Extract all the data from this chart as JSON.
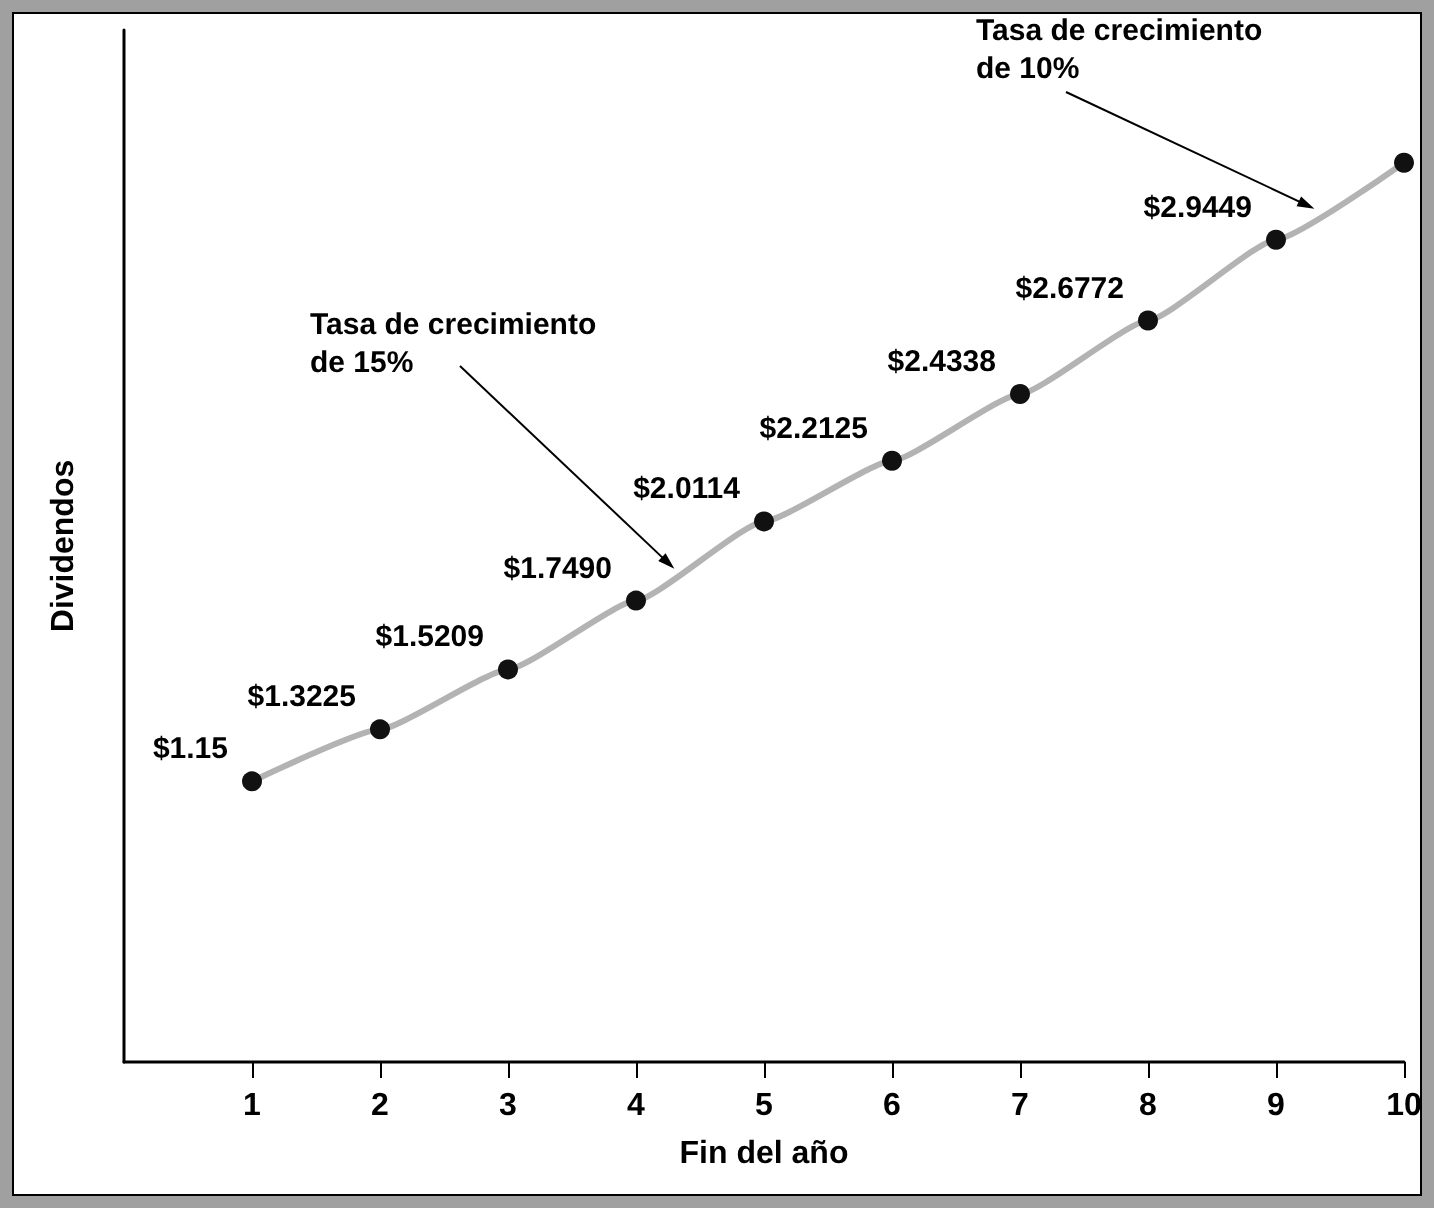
{
  "chart_data": {
    "type": "line",
    "xlabel": "Fin del año",
    "ylabel": "Dividendos",
    "x": [
      1,
      2,
      3,
      4,
      5,
      6,
      7,
      8,
      9,
      10
    ],
    "series": [
      {
        "color": "#b3b3b3",
        "values": [
          1.15,
          1.3225,
          1.5209,
          1.749,
          2.0114,
          2.2125,
          2.4338,
          2.6772,
          2.9449,
          3.2
        ],
        "value_labels": [
          "$1.15",
          "$1.3225",
          "$1.5209",
          "$1.7490",
          "$2.0114",
          "$2.2125",
          "$2.4338",
          "$2.6772",
          "$2.9449",
          null
        ]
      }
    ],
    "xlim": [
      0,
      10
    ],
    "xticks": [
      1,
      2,
      3,
      4,
      5,
      6,
      7,
      8,
      9,
      10
    ],
    "ylim": [
      0.22,
      3.64
    ],
    "tick_labels": "x",
    "marker": "circle",
    "line_style": "solid",
    "grid": false,
    "annotations": [
      "Tasa de crecimiento\nde 15%",
      "Tasa de crecimiento\nde 10%"
    ]
  }
}
